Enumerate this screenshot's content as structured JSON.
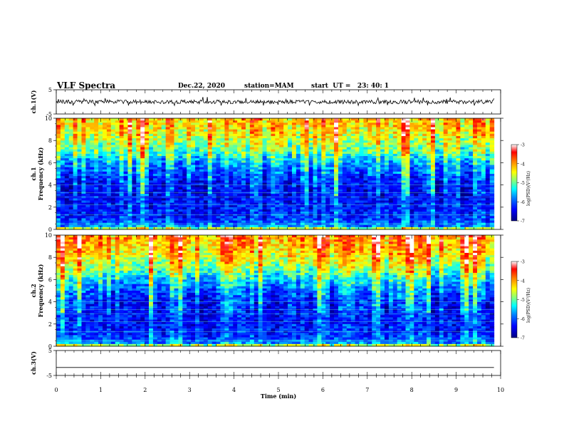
{
  "header": {
    "title": "VLF Spectra",
    "date": "Dec.22, 2020",
    "station": "station=MAM",
    "start": "start  UT =   23: 40: 1"
  },
  "colors": {
    "colormap": [
      "#000080",
      "#0000ff",
      "#0080ff",
      "#00ffff",
      "#80ff80",
      "#ffff00",
      "#ff8000",
      "#ff0000",
      "#ffffff"
    ]
  },
  "chart_data": [
    {
      "type": "line",
      "name": "ch1-waveform",
      "xlabel": "",
      "ylabel": "ch.1(V)",
      "ylim": [
        -5,
        5
      ],
      "yticks": [
        "5",
        "-5"
      ],
      "xlim": [
        0,
        10
      ],
      "mean_level": 0,
      "fluctuation_range": [
        -1.5,
        2
      ]
    },
    {
      "type": "heatmap",
      "name": "ch1-spectrogram",
      "ylabel_line1": "ch.1",
      "ylabel_line2": "Frequency  (kHz)",
      "ylim": [
        0,
        10
      ],
      "yticks": [
        "0",
        "2",
        "4",
        "6",
        "8",
        "10"
      ],
      "xlim": [
        0,
        9.85
      ],
      "colorbar": {
        "label": "log(PSD)(V²/Hz)",
        "range": [
          -7,
          -3
        ],
        "ticks": [
          "-3",
          "-4",
          "-5",
          "-6",
          "-7"
        ]
      },
      "freq_profile_kHz": [
        0,
        1,
        2,
        3,
        4,
        5,
        6,
        7,
        8,
        9,
        10
      ],
      "level_profile": [
        -5.6,
        -6.2,
        -6.3,
        -6.4,
        -6.3,
        -6.0,
        -5.6,
        -5.0,
        -4.6,
        -4.3,
        -4.1
      ]
    },
    {
      "type": "heatmap",
      "name": "ch2-spectrogram",
      "ylabel_line1": "ch.2",
      "ylabel_line2": "Frequency  (kHz)",
      "ylim": [
        0,
        10
      ],
      "yticks": [
        "0",
        "2",
        "4",
        "6",
        "8",
        "10"
      ],
      "xlim": [
        0,
        9.85
      ],
      "colorbar": {
        "label": "log(PSD)(V²/Hz)",
        "range": [
          -7,
          -3
        ],
        "ticks": [
          "-3",
          "-4",
          "-5",
          "-6",
          "-7"
        ]
      },
      "freq_profile_kHz": [
        0,
        1,
        2,
        3,
        4,
        5,
        6,
        7,
        8,
        9,
        10
      ],
      "level_profile": [
        -5.6,
        -6.2,
        -6.3,
        -6.3,
        -6.2,
        -5.9,
        -5.4,
        -4.8,
        -4.4,
        -4.1,
        -3.9
      ]
    },
    {
      "type": "line",
      "name": "ch3-waveform",
      "ylabel": "ch.3(V)",
      "ylim": [
        -5,
        5
      ],
      "yticks": [
        "5",
        "-5"
      ],
      "xlim": [
        0,
        10
      ],
      "constant_value": -1.8
    }
  ],
  "xaxis": {
    "label": "Time  (min)",
    "range": [
      0,
      10
    ],
    "ticks": [
      "0",
      "1",
      "2",
      "3",
      "4",
      "5",
      "6",
      "7",
      "8",
      "9",
      "10"
    ]
  }
}
